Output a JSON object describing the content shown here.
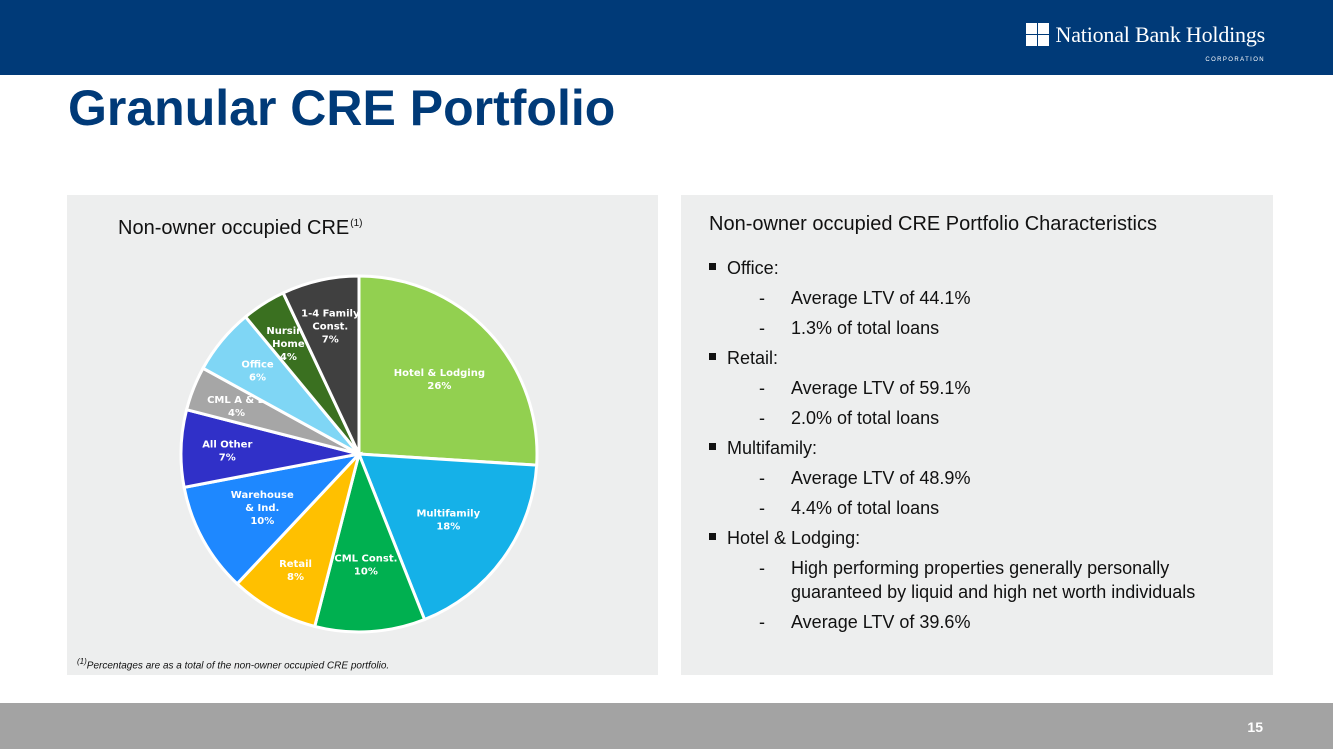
{
  "header": {
    "logo_name": "National Bank Holdings",
    "logo_sub": "CORPORATION"
  },
  "page_title": "Granular CRE Portfolio",
  "left_panel": {
    "title": "Non-owner occupied CRE",
    "title_sup": "(1)",
    "footnote_sup": "(1)",
    "footnote": "Percentages are as a total of the non-owner occupied CRE portfolio."
  },
  "chart_data": {
    "type": "pie",
    "title": "Non-owner occupied CRE",
    "start": "12 o'clock, clockwise",
    "slices": [
      {
        "label": [
          "Hotel & Lodging"
        ],
        "pct": "26%",
        "value": 26,
        "color": "#92d050",
        "text_color": "#ffffff"
      },
      {
        "label": [
          "Multifamily"
        ],
        "pct": "18%",
        "value": 18,
        "color": "#15b1e8",
        "text_color": "#ffffff"
      },
      {
        "label": [
          "CML Const."
        ],
        "pct": "10%",
        "value": 10,
        "color": "#00b050",
        "text_color": "#ffffff"
      },
      {
        "label": [
          "Retail"
        ],
        "pct": "8%",
        "value": 8,
        "color": "#ffc000",
        "text_color": "#ffffff"
      },
      {
        "label": [
          "Warehouse",
          "& Ind."
        ],
        "pct": "10%",
        "value": 10,
        "color": "#1e88ff",
        "text_color": "#ffffff"
      },
      {
        "label": [
          "All Other"
        ],
        "pct": "7%",
        "value": 7,
        "color": "#3030c8",
        "text_color": "#ffffff"
      },
      {
        "label": [
          "CML A & D"
        ],
        "pct": "4%",
        "value": 4,
        "color": "#a6a6a6",
        "text_color": "#ffffff"
      },
      {
        "label": [
          "Office"
        ],
        "pct": "6%",
        "value": 6,
        "color": "#7fd6f5",
        "text_color": "#ffffff"
      },
      {
        "label": [
          "Nursing",
          "Home"
        ],
        "pct": "4%",
        "value": 4,
        "color": "#3a7020",
        "text_color": "#ffffff"
      },
      {
        "label": [
          "1-4 Family",
          "Const."
        ],
        "pct": "7%",
        "value": 7,
        "color": "#404040",
        "text_color": "#ffffff"
      }
    ]
  },
  "right_panel": {
    "title": "Non-owner occupied CRE Portfolio Characteristics",
    "sections": [
      {
        "heading": "Office:",
        "items": [
          "Average LTV of 44.1%",
          "1.3% of total loans"
        ]
      },
      {
        "heading": "Retail:",
        "items": [
          "Average LTV of 59.1%",
          "2.0% of total loans"
        ]
      },
      {
        "heading": "Multifamily:",
        "items": [
          "Average LTV of 48.9%",
          "4.4% of total loans"
        ]
      },
      {
        "heading": "Hotel & Lodging:",
        "items": [
          "High performing properties generally personally guaranteed by liquid and high net worth individuals",
          "Average LTV of 39.6%"
        ]
      }
    ],
    "dash": "-"
  },
  "footer": {
    "page_number": "15"
  }
}
